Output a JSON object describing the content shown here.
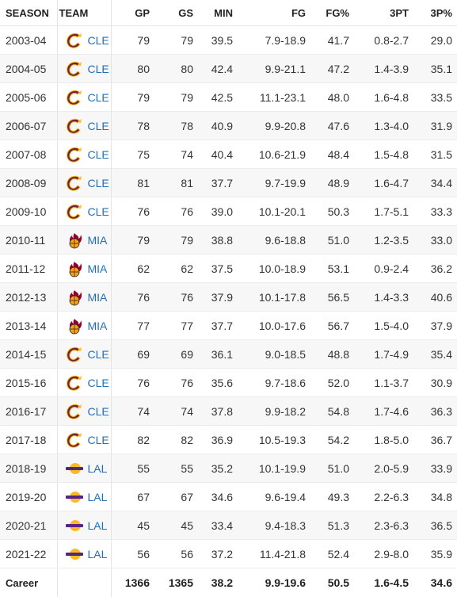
{
  "headers": {
    "season": "SEASON",
    "team": "TEAM",
    "gp": "GP",
    "gs": "GS",
    "min": "MIN",
    "fg": "FG",
    "fg_pct": "FG%",
    "threept": "3PT",
    "threept_pct": "3P%"
  },
  "team_icons": {
    "CLE": "cavaliers-c-logo-icon",
    "MIA": "heat-flaming-ball-logo-icon",
    "LAL": "lakers-logo-icon"
  },
  "colors": {
    "link": "#1f6fb5",
    "cle_wine": "#6f263d",
    "cle_gold": "#ffb81c",
    "mia_red": "#98002e",
    "lal_purple": "#552583",
    "lal_gold": "#fdb927"
  },
  "rows": [
    {
      "season": "2003-04",
      "team": "CLE",
      "gp": "79",
      "gs": "79",
      "min": "39.5",
      "fg": "7.9-18.9",
      "fg_pct": "41.7",
      "threept": "0.8-2.7",
      "threept_pct": "29.0"
    },
    {
      "season": "2004-05",
      "team": "CLE",
      "gp": "80",
      "gs": "80",
      "min": "42.4",
      "fg": "9.9-21.1",
      "fg_pct": "47.2",
      "threept": "1.4-3.9",
      "threept_pct": "35.1"
    },
    {
      "season": "2005-06",
      "team": "CLE",
      "gp": "79",
      "gs": "79",
      "min": "42.5",
      "fg": "11.1-23.1",
      "fg_pct": "48.0",
      "threept": "1.6-4.8",
      "threept_pct": "33.5"
    },
    {
      "season": "2006-07",
      "team": "CLE",
      "gp": "78",
      "gs": "78",
      "min": "40.9",
      "fg": "9.9-20.8",
      "fg_pct": "47.6",
      "threept": "1.3-4.0",
      "threept_pct": "31.9"
    },
    {
      "season": "2007-08",
      "team": "CLE",
      "gp": "75",
      "gs": "74",
      "min": "40.4",
      "fg": "10.6-21.9",
      "fg_pct": "48.4",
      "threept": "1.5-4.8",
      "threept_pct": "31.5"
    },
    {
      "season": "2008-09",
      "team": "CLE",
      "gp": "81",
      "gs": "81",
      "min": "37.7",
      "fg": "9.7-19.9",
      "fg_pct": "48.9",
      "threept": "1.6-4.7",
      "threept_pct": "34.4"
    },
    {
      "season": "2009-10",
      "team": "CLE",
      "gp": "76",
      "gs": "76",
      "min": "39.0",
      "fg": "10.1-20.1",
      "fg_pct": "50.3",
      "threept": "1.7-5.1",
      "threept_pct": "33.3"
    },
    {
      "season": "2010-11",
      "team": "MIA",
      "gp": "79",
      "gs": "79",
      "min": "38.8",
      "fg": "9.6-18.8",
      "fg_pct": "51.0",
      "threept": "1.2-3.5",
      "threept_pct": "33.0"
    },
    {
      "season": "2011-12",
      "team": "MIA",
      "gp": "62",
      "gs": "62",
      "min": "37.5",
      "fg": "10.0-18.9",
      "fg_pct": "53.1",
      "threept": "0.9-2.4",
      "threept_pct": "36.2"
    },
    {
      "season": "2012-13",
      "team": "MIA",
      "gp": "76",
      "gs": "76",
      "min": "37.9",
      "fg": "10.1-17.8",
      "fg_pct": "56.5",
      "threept": "1.4-3.3",
      "threept_pct": "40.6"
    },
    {
      "season": "2013-14",
      "team": "MIA",
      "gp": "77",
      "gs": "77",
      "min": "37.7",
      "fg": "10.0-17.6",
      "fg_pct": "56.7",
      "threept": "1.5-4.0",
      "threept_pct": "37.9"
    },
    {
      "season": "2014-15",
      "team": "CLE",
      "gp": "69",
      "gs": "69",
      "min": "36.1",
      "fg": "9.0-18.5",
      "fg_pct": "48.8",
      "threept": "1.7-4.9",
      "threept_pct": "35.4"
    },
    {
      "season": "2015-16",
      "team": "CLE",
      "gp": "76",
      "gs": "76",
      "min": "35.6",
      "fg": "9.7-18.6",
      "fg_pct": "52.0",
      "threept": "1.1-3.7",
      "threept_pct": "30.9"
    },
    {
      "season": "2016-17",
      "team": "CLE",
      "gp": "74",
      "gs": "74",
      "min": "37.8",
      "fg": "9.9-18.2",
      "fg_pct": "54.8",
      "threept": "1.7-4.6",
      "threept_pct": "36.3"
    },
    {
      "season": "2017-18",
      "team": "CLE",
      "gp": "82",
      "gs": "82",
      "min": "36.9",
      "fg": "10.5-19.3",
      "fg_pct": "54.2",
      "threept": "1.8-5.0",
      "threept_pct": "36.7"
    },
    {
      "season": "2018-19",
      "team": "LAL",
      "gp": "55",
      "gs": "55",
      "min": "35.2",
      "fg": "10.1-19.9",
      "fg_pct": "51.0",
      "threept": "2.0-5.9",
      "threept_pct": "33.9"
    },
    {
      "season": "2019-20",
      "team": "LAL",
      "gp": "67",
      "gs": "67",
      "min": "34.6",
      "fg": "9.6-19.4",
      "fg_pct": "49.3",
      "threept": "2.2-6.3",
      "threept_pct": "34.8"
    },
    {
      "season": "2020-21",
      "team": "LAL",
      "gp": "45",
      "gs": "45",
      "min": "33.4",
      "fg": "9.4-18.3",
      "fg_pct": "51.3",
      "threept": "2.3-6.3",
      "threept_pct": "36.5"
    },
    {
      "season": "2021-22",
      "team": "LAL",
      "gp": "56",
      "gs": "56",
      "min": "37.2",
      "fg": "11.4-21.8",
      "fg_pct": "52.4",
      "threept": "2.9-8.0",
      "threept_pct": "35.9"
    }
  ],
  "career": {
    "label": "Career",
    "gp": "1366",
    "gs": "1365",
    "min": "38.2",
    "fg": "9.9-19.6",
    "fg_pct": "50.5",
    "threept": "1.6-4.5",
    "threept_pct": "34.6"
  }
}
